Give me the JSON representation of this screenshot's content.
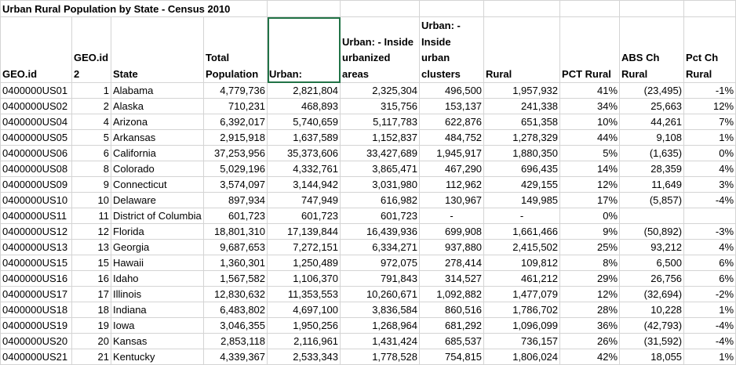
{
  "sheet": {
    "title": "Urban Rural Population by State - Census 2010",
    "headers": [
      "GEO.id",
      "GEO.id 2",
      "State",
      "Total Population",
      "Urban:",
      "Urban: - Inside urbanized areas",
      "Urban: - Inside urban clusters",
      "Rural",
      "PCT Rural",
      "ABS Ch Rural",
      "Pct Ch Rural"
    ],
    "selected_cell": "Urban:",
    "rows": [
      [
        "0400000US01",
        "1",
        "Alabama",
        "4,779,736",
        "2,821,804",
        "2,325,304",
        "496,500",
        "1,957,932",
        "41%",
        "(23,495)",
        "-1%"
      ],
      [
        "0400000US02",
        "2",
        "Alaska",
        "710,231",
        "468,893",
        "315,756",
        "153,137",
        "241,338",
        "34%",
        "25,663",
        "12%"
      ],
      [
        "0400000US04",
        "4",
        "Arizona",
        "6,392,017",
        "5,740,659",
        "5,117,783",
        "622,876",
        "651,358",
        "10%",
        "44,261",
        "7%"
      ],
      [
        "0400000US05",
        "5",
        "Arkansas",
        "2,915,918",
        "1,637,589",
        "1,152,837",
        "484,752",
        "1,278,329",
        "44%",
        "9,108",
        "1%"
      ],
      [
        "0400000US06",
        "6",
        "California",
        "37,253,956",
        "35,373,606",
        "33,427,689",
        "1,945,917",
        "1,880,350",
        "5%",
        "(1,635)",
        "0%"
      ],
      [
        "0400000US08",
        "8",
        "Colorado",
        "5,029,196",
        "4,332,761",
        "3,865,471",
        "467,290",
        "696,435",
        "14%",
        "28,359",
        "4%"
      ],
      [
        "0400000US09",
        "9",
        "Connecticut",
        "3,574,097",
        "3,144,942",
        "3,031,980",
        "112,962",
        "429,155",
        "12%",
        "11,649",
        "3%"
      ],
      [
        "0400000US10",
        "10",
        "Delaware",
        "897,934",
        "747,949",
        "616,982",
        "130,967",
        "149,985",
        "17%",
        "(5,857)",
        "-4%"
      ],
      [
        "0400000US11",
        "11",
        "District of Columbia",
        "601,723",
        "601,723",
        "601,723",
        "-",
        "-",
        "0%",
        "",
        ""
      ],
      [
        "0400000US12",
        "12",
        "Florida",
        "18,801,310",
        "17,139,844",
        "16,439,936",
        "699,908",
        "1,661,466",
        "9%",
        "(50,892)",
        "-3%"
      ],
      [
        "0400000US13",
        "13",
        "Georgia",
        "9,687,653",
        "7,272,151",
        "6,334,271",
        "937,880",
        "2,415,502",
        "25%",
        "93,212",
        "4%"
      ],
      [
        "0400000US15",
        "15",
        "Hawaii",
        "1,360,301",
        "1,250,489",
        "972,075",
        "278,414",
        "109,812",
        "8%",
        "6,500",
        "6%"
      ],
      [
        "0400000US16",
        "16",
        "Idaho",
        "1,567,582",
        "1,106,370",
        "791,843",
        "314,527",
        "461,212",
        "29%",
        "26,756",
        "6%"
      ],
      [
        "0400000US17",
        "17",
        "Illinois",
        "12,830,632",
        "11,353,553",
        "10,260,671",
        "1,092,882",
        "1,477,079",
        "12%",
        "(32,694)",
        "-2%"
      ],
      [
        "0400000US18",
        "18",
        "Indiana",
        "6,483,802",
        "4,697,100",
        "3,836,584",
        "860,516",
        "1,786,702",
        "28%",
        "10,228",
        "1%"
      ],
      [
        "0400000US19",
        "19",
        "Iowa",
        "3,046,355",
        "1,950,256",
        "1,268,964",
        "681,292",
        "1,096,099",
        "36%",
        "(42,793)",
        "-4%"
      ],
      [
        "0400000US20",
        "20",
        "Kansas",
        "2,853,118",
        "2,116,961",
        "1,431,424",
        "685,537",
        "736,157",
        "26%",
        "(31,592)",
        "-4%"
      ],
      [
        "0400000US21",
        "21",
        "Kentucky",
        "4,339,367",
        "2,533,343",
        "1,778,528",
        "754,815",
        "1,806,024",
        "42%",
        "18,055",
        "1%"
      ]
    ]
  }
}
